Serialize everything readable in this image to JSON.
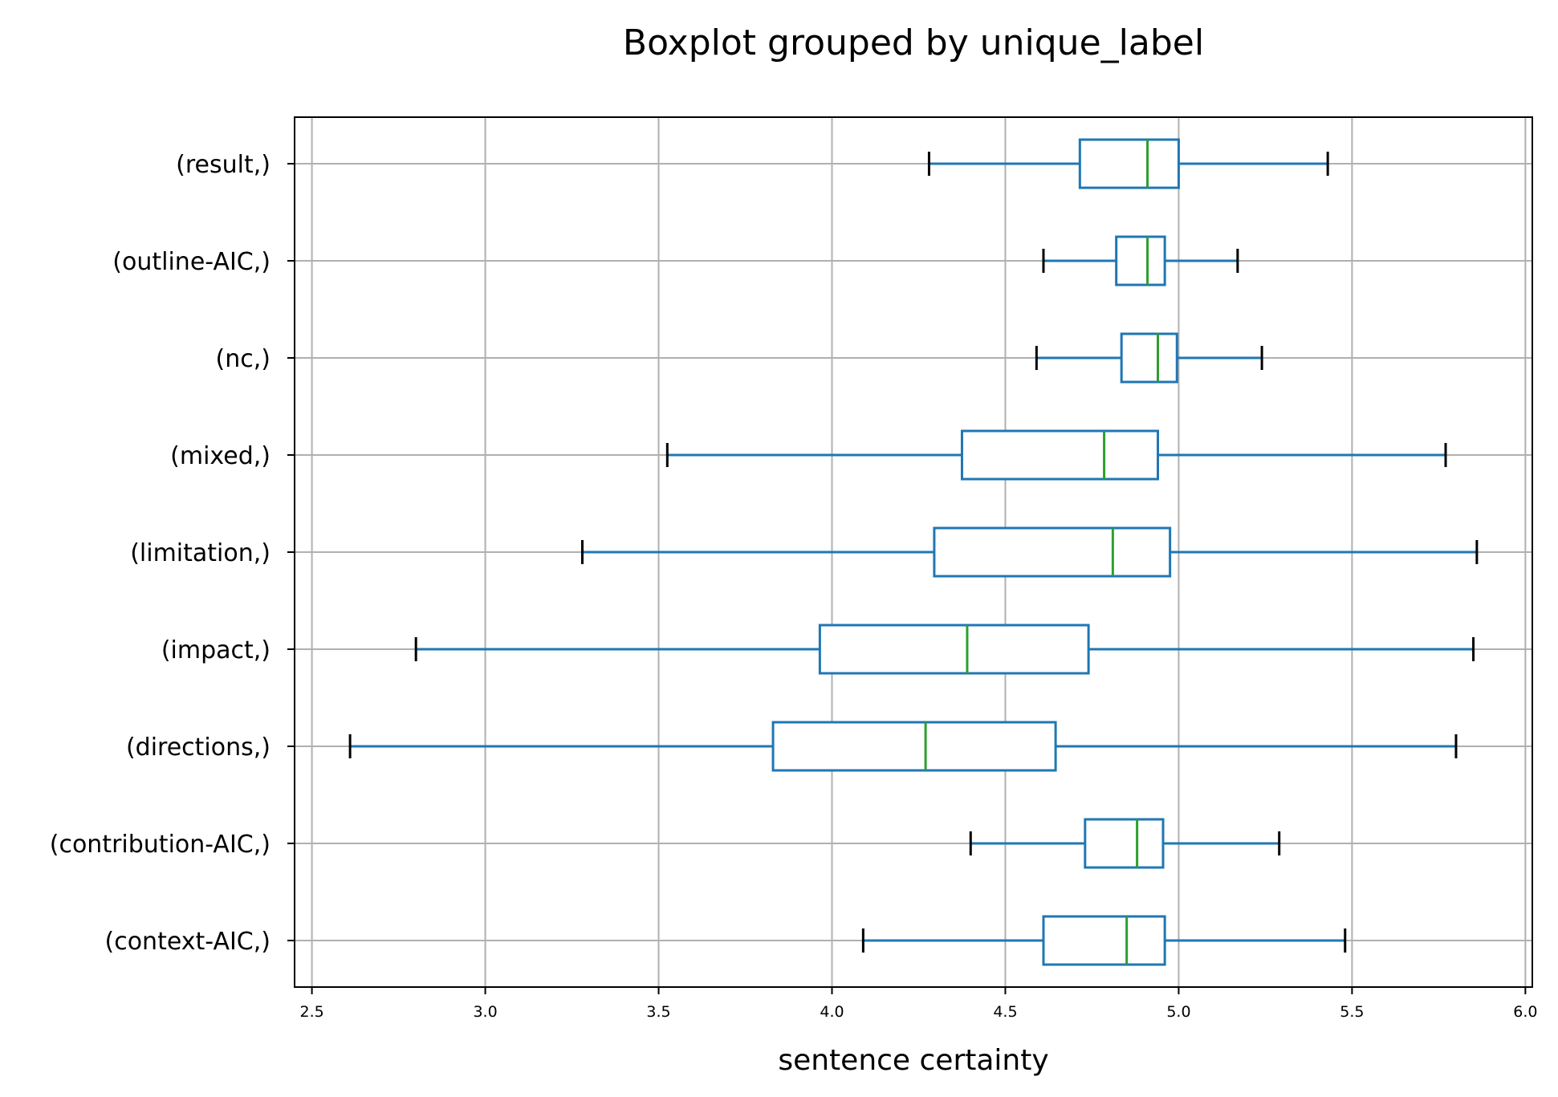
{
  "chart_data": {
    "type": "boxplot",
    "orientation": "horizontal",
    "title": "Boxplot grouped by unique_label",
    "xlabel": "sentence certainty",
    "ylabel": "",
    "xlim": [
      2.45,
      6.02
    ],
    "xticks": [
      "2.5",
      "3.0",
      "3.5",
      "4.0",
      "4.5",
      "5.0",
      "5.5",
      "6.0"
    ],
    "grid": true,
    "colors": {
      "box": "#1f77b4",
      "median": "#2ca02c",
      "caps": "#000000",
      "grid": "#b0b0b0"
    },
    "categories": [
      {
        "label": "(context-AIC,)",
        "whisker_low": 4.09,
        "q1": 4.61,
        "median": 4.85,
        "q3": 4.96,
        "whisker_high": 5.48
      },
      {
        "label": "(contribution-AIC,)",
        "whisker_low": 4.4,
        "q1": 4.73,
        "median": 4.88,
        "q3": 4.955,
        "whisker_high": 5.29
      },
      {
        "label": "(directions,)",
        "whisker_low": 2.61,
        "q1": 3.83,
        "median": 4.27,
        "q3": 4.645,
        "whisker_high": 5.8
      },
      {
        "label": "(impact,)",
        "whisker_low": 2.8,
        "q1": 3.965,
        "median": 4.39,
        "q3": 4.74,
        "whisker_high": 5.85
      },
      {
        "label": "(limitation,)",
        "whisker_low": 3.28,
        "q1": 4.295,
        "median": 4.81,
        "q3": 4.975,
        "whisker_high": 5.86
      },
      {
        "label": "(mixed,)",
        "whisker_low": 3.525,
        "q1": 4.375,
        "median": 4.785,
        "q3": 4.94,
        "whisker_high": 5.77
      },
      {
        "label": "(nc,)",
        "whisker_low": 4.59,
        "q1": 4.835,
        "median": 4.94,
        "q3": 4.995,
        "whisker_high": 5.24
      },
      {
        "label": "(outline-AIC,)",
        "whisker_low": 4.61,
        "q1": 4.82,
        "median": 4.91,
        "q3": 4.96,
        "whisker_high": 5.17
      },
      {
        "label": "(result,)",
        "whisker_low": 4.28,
        "q1": 4.715,
        "median": 4.91,
        "q3": 5.0,
        "whisker_high": 5.43
      }
    ]
  }
}
